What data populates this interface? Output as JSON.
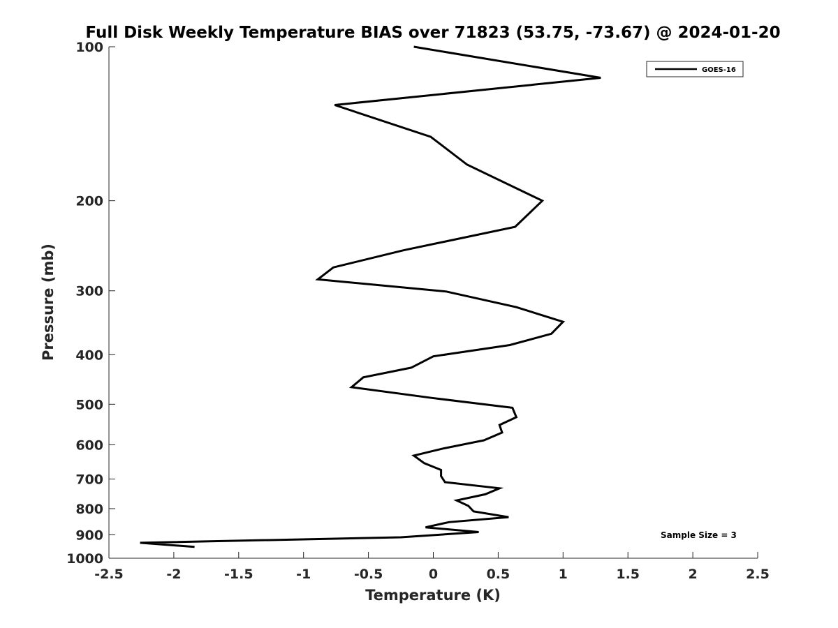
{
  "chart_data": {
    "type": "line",
    "title": "Full Disk Weekly Temperature BIAS over 71823 (53.75, -73.67) @ 2024-01-20",
    "xlabel": "Temperature (K)",
    "ylabel": "Pressure (mb)",
    "xlim": [
      -2.5,
      2.5
    ],
    "ylim": [
      100,
      1000
    ],
    "y_scale": "log",
    "y_reversed": true,
    "grid": false,
    "legend_position": "top-right",
    "x_ticks": [
      "-2.5",
      "-2",
      "-1.5",
      "-1",
      "-0.5",
      "0",
      "0.5",
      "1",
      "1.5",
      "2",
      "2.5"
    ],
    "x_tick_values": [
      -2.5,
      -2,
      -1.5,
      -1,
      -0.5,
      0,
      0.5,
      1,
      1.5,
      2,
      2.5
    ],
    "y_ticks": [
      "100",
      "200",
      "300",
      "400",
      "500",
      "600",
      "700",
      "800",
      "900",
      "1000"
    ],
    "y_tick_values": [
      100,
      200,
      300,
      400,
      500,
      600,
      700,
      800,
      900,
      1000
    ],
    "series": [
      {
        "name": "GOES-16",
        "color": "#000000",
        "points": [
          [
            -0.15,
            100
          ],
          [
            1.29,
            115
          ],
          [
            -0.76,
            130
          ],
          [
            -0.02,
            150
          ],
          [
            0.26,
            170
          ],
          [
            0.84,
            200
          ],
          [
            0.63,
            225
          ],
          [
            -0.23,
            250
          ],
          [
            -0.77,
            270
          ],
          [
            -0.89,
            285
          ],
          [
            0.1,
            301
          ],
          [
            0.64,
            323
          ],
          [
            1.0,
            345
          ],
          [
            0.91,
            364
          ],
          [
            0.59,
            383
          ],
          [
            0.0,
            403
          ],
          [
            -0.17,
            424
          ],
          [
            -0.54,
            443
          ],
          [
            -0.63,
            463
          ],
          [
            -0.01,
            486
          ],
          [
            0.61,
            508
          ],
          [
            0.64,
            530
          ],
          [
            0.51,
            549
          ],
          [
            0.53,
            568
          ],
          [
            0.39,
            588
          ],
          [
            0.08,
            610
          ],
          [
            -0.15,
            630
          ],
          [
            -0.07,
            652
          ],
          [
            0.06,
            672
          ],
          [
            0.06,
            691
          ],
          [
            0.09,
            710
          ],
          [
            0.51,
            730
          ],
          [
            0.4,
            750
          ],
          [
            0.18,
            771
          ],
          [
            0.27,
            790
          ],
          [
            0.31,
            810
          ],
          [
            0.58,
            831
          ],
          [
            0.12,
            850
          ],
          [
            -0.06,
            870
          ],
          [
            0.35,
            889
          ],
          [
            -0.25,
            910
          ],
          [
            -2.26,
            933
          ],
          [
            -1.84,
            950
          ]
        ]
      }
    ],
    "annotations": [
      "Sample Size = 3"
    ]
  }
}
